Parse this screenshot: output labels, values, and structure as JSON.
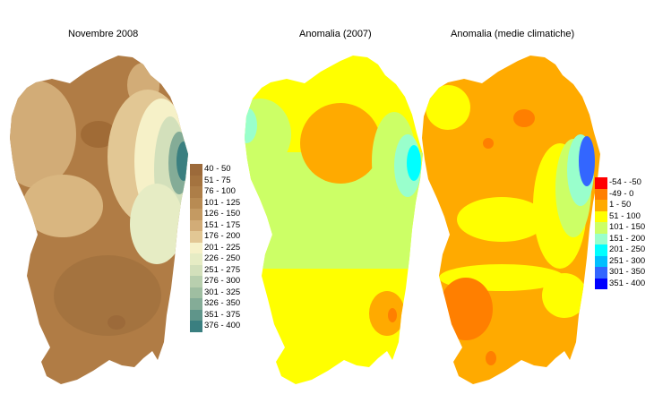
{
  "panels": [
    {
      "title": "Novembre 2008"
    },
    {
      "title": "Anomalia (2007)"
    },
    {
      "title": "Anomalia (medie climatiche)"
    }
  ],
  "legend_rain": [
    {
      "label": "40 - 50",
      "color": "#9c6a3a"
    },
    {
      "label": "51 - 75",
      "color": "#a4733f"
    },
    {
      "label": "76 - 100",
      "color": "#ad7e48"
    },
    {
      "label": "101 - 125",
      "color": "#b88b53"
    },
    {
      "label": "126 - 150",
      "color": "#c49a62"
    },
    {
      "label": "151 - 175",
      "color": "#d2ac77"
    },
    {
      "label": "176 - 200",
      "color": "#e2c794"
    },
    {
      "label": "201 - 225",
      "color": "#f6f1c8"
    },
    {
      "label": "226 - 250",
      "color": "#e6ecc4"
    },
    {
      "label": "251 - 275",
      "color": "#d3e0bb"
    },
    {
      "label": "276 - 300",
      "color": "#b8cfae"
    },
    {
      "label": "301 - 325",
      "color": "#9fbea1"
    },
    {
      "label": "326 - 350",
      "color": "#84ac97"
    },
    {
      "label": "351 - 375",
      "color": "#5f958a"
    },
    {
      "label": "376 - 400",
      "color": "#3a7f80"
    }
  ],
  "legend_anomaly": [
    {
      "label": "-54 - -50",
      "color": "#ff0000"
    },
    {
      "label": "-49 - 0",
      "color": "#ff7f00"
    },
    {
      "label": "1 - 50",
      "color": "#ffaa00"
    },
    {
      "label": "51 - 100",
      "color": "#ffff00"
    },
    {
      "label": "101 - 150",
      "color": "#ccff66"
    },
    {
      "label": "151 - 200",
      "color": "#99ffcc"
    },
    {
      "label": "201 - 250",
      "color": "#00ffff"
    },
    {
      "label": "251 - 300",
      "color": "#00bfff"
    },
    {
      "label": "301 - 350",
      "color": "#3366ff"
    },
    {
      "label": "351 - 400",
      "color": "#0000ff"
    }
  ]
}
